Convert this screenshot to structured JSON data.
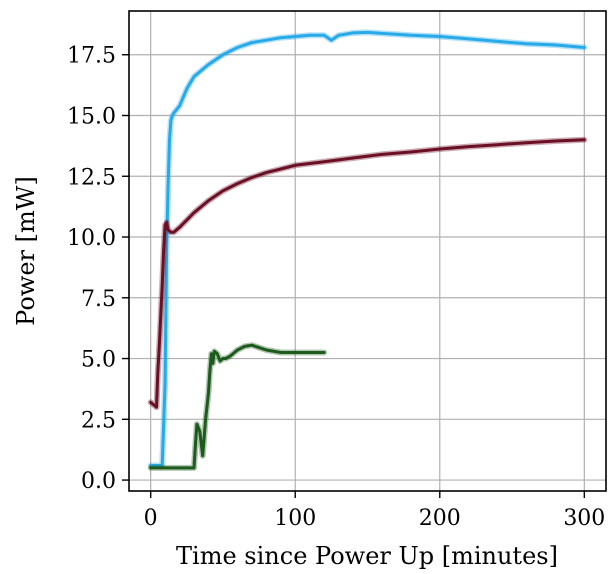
{
  "chart_data": {
    "type": "line",
    "title": "",
    "xlabel": "Time since Power Up [minutes]",
    "ylabel": "Power [mW]",
    "xlim": [
      -15,
      315
    ],
    "ylim": [
      -0.45,
      19.3
    ],
    "xticks": [
      0,
      100,
      200,
      300
    ],
    "xtick_labels": [
      "0",
      "100",
      "200",
      "300"
    ],
    "yticks": [
      0.0,
      2.5,
      5.0,
      7.5,
      10.0,
      12.5,
      15.0,
      17.5
    ],
    "ytick_labels": [
      "0.0",
      "2.5",
      "5.0",
      "7.5",
      "10.0",
      "12.5",
      "15.0",
      "17.5"
    ],
    "grid": true,
    "legend": "none",
    "series": [
      {
        "color": "#29aae8",
        "x": [
          0,
          3,
          8,
          10,
          11,
          12,
          13,
          14,
          15,
          16,
          20,
          25,
          30,
          40,
          50,
          60,
          70,
          80,
          90,
          100,
          110,
          120,
          125,
          130,
          135,
          140,
          150,
          160,
          180,
          200,
          220,
          240,
          260,
          280,
          300
        ],
        "y": [
          0.6,
          0.6,
          0.6,
          4.0,
          9.5,
          12.0,
          14.0,
          14.8,
          15.0,
          15.1,
          15.4,
          16.1,
          16.6,
          17.1,
          17.5,
          17.8,
          18.0,
          18.1,
          18.2,
          18.25,
          18.3,
          18.3,
          18.1,
          18.3,
          18.35,
          18.4,
          18.42,
          18.38,
          18.3,
          18.25,
          18.15,
          18.05,
          17.95,
          17.9,
          17.8
        ]
      },
      {
        "color": "#6b0f24",
        "x": [
          0,
          2,
          4,
          5,
          6,
          7,
          8,
          9,
          10,
          11,
          12,
          14,
          16,
          18,
          20,
          25,
          30,
          40,
          50,
          60,
          70,
          80,
          90,
          100,
          120,
          140,
          160,
          180,
          200,
          220,
          240,
          260,
          280,
          300
        ],
        "y": [
          3.2,
          3.1,
          3.0,
          4.5,
          5.6,
          6.8,
          8.0,
          9.5,
          10.5,
          10.6,
          10.3,
          10.2,
          10.2,
          10.3,
          10.4,
          10.7,
          11.0,
          11.5,
          11.9,
          12.2,
          12.45,
          12.65,
          12.8,
          12.95,
          13.1,
          13.25,
          13.4,
          13.5,
          13.62,
          13.72,
          13.8,
          13.88,
          13.95,
          14.0
        ]
      },
      {
        "color": "#1d5b1d",
        "x": [
          0,
          10,
          20,
          30,
          31,
          32,
          34,
          36,
          38,
          40,
          41,
          42,
          43,
          44,
          46,
          48,
          50,
          52,
          55,
          60,
          65,
          70,
          75,
          80,
          90,
          100,
          110,
          120
        ],
        "y": [
          0.5,
          0.5,
          0.5,
          0.5,
          1.5,
          2.3,
          2.0,
          1.0,
          2.5,
          3.6,
          4.5,
          5.2,
          4.8,
          5.3,
          5.2,
          4.9,
          5.0,
          5.0,
          5.1,
          5.35,
          5.5,
          5.55,
          5.45,
          5.35,
          5.25,
          5.25,
          5.25,
          5.25
        ]
      }
    ]
  }
}
